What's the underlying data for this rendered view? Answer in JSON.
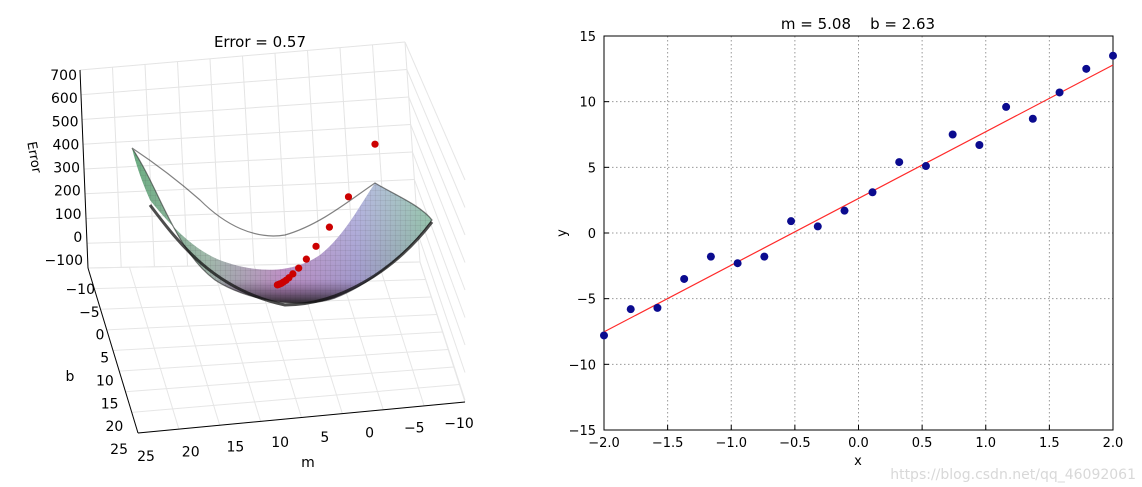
{
  "chart_data": [
    {
      "type": "surface",
      "title": "Error = 0.57",
      "xlabel": "m",
      "ylabel": "b",
      "zlabel": "Error",
      "z_ticks": [
        "700",
        "600",
        "500",
        "400",
        "300",
        "200",
        "100",
        "0",
        "−100"
      ],
      "b_ticks": [
        "−10",
        "−5",
        "0",
        "5",
        "10",
        "15",
        "20",
        "25"
      ],
      "m_ticks": [
        "25",
        "20",
        "15",
        "10",
        "5",
        "0",
        "−5",
        "−10"
      ],
      "point_color": "#cc0000",
      "descent_path": [
        {
          "m": 0.0,
          "b": 0.0,
          "error": 440
        },
        {
          "m": 1.4,
          "b": 0.4,
          "error": 275
        },
        {
          "m": 2.4,
          "b": 0.8,
          "error": 180
        },
        {
          "m": 3.1,
          "b": 1.1,
          "error": 120
        },
        {
          "m": 3.6,
          "b": 1.4,
          "error": 80
        },
        {
          "m": 4.0,
          "b": 1.6,
          "error": 52
        },
        {
          "m": 4.3,
          "b": 1.8,
          "error": 34
        },
        {
          "m": 4.5,
          "b": 1.95,
          "error": 22
        },
        {
          "m": 4.65,
          "b": 2.1,
          "error": 14
        },
        {
          "m": 4.78,
          "b": 2.2,
          "error": 9
        },
        {
          "m": 4.88,
          "b": 2.3,
          "error": 5
        },
        {
          "m": 4.96,
          "b": 2.4,
          "error": 3
        },
        {
          "m": 5.02,
          "b": 2.5,
          "error": 1.5
        },
        {
          "m": 5.08,
          "b": 2.63,
          "error": 0.57
        }
      ]
    },
    {
      "type": "scatter",
      "title": "m = 5.08    b = 2.63",
      "xlabel": "x",
      "ylabel": "y",
      "xlim": [
        -2.0,
        2.0
      ],
      "ylim": [
        -15,
        15
      ],
      "x_ticks": [
        "−2.0",
        "−1.5",
        "−1.0",
        "−0.5",
        "0.0",
        "0.5",
        "1.0",
        "1.5",
        "2.0"
      ],
      "y_ticks": [
        "15",
        "10",
        "5",
        "0",
        "−5",
        "−10",
        "−15"
      ],
      "grid": true,
      "point_color": "#0b0b8f",
      "line_color": "#ff2a2a",
      "points": [
        {
          "x": -2.0,
          "y": -7.8
        },
        {
          "x": -1.79,
          "y": -5.8
        },
        {
          "x": -1.58,
          "y": -5.7
        },
        {
          "x": -1.37,
          "y": -3.5
        },
        {
          "x": -1.16,
          "y": -1.8
        },
        {
          "x": -0.95,
          "y": -2.3
        },
        {
          "x": -0.74,
          "y": -1.8
        },
        {
          "x": -0.53,
          "y": 0.9
        },
        {
          "x": -0.32,
          "y": 0.5
        },
        {
          "x": -0.11,
          "y": 1.7
        },
        {
          "x": 0.11,
          "y": 3.1
        },
        {
          "x": 0.32,
          "y": 5.4
        },
        {
          "x": 0.53,
          "y": 5.1
        },
        {
          "x": 0.74,
          "y": 7.5
        },
        {
          "x": 0.95,
          "y": 6.7
        },
        {
          "x": 1.16,
          "y": 9.6
        },
        {
          "x": 1.37,
          "y": 8.7
        },
        {
          "x": 1.58,
          "y": 10.7
        },
        {
          "x": 1.79,
          "y": 12.5
        },
        {
          "x": 2.0,
          "y": 13.5
        }
      ],
      "fit_line": {
        "m": 5.08,
        "b": 2.63
      }
    }
  ],
  "watermark": "https://blog.csdn.net/qq_46092061"
}
